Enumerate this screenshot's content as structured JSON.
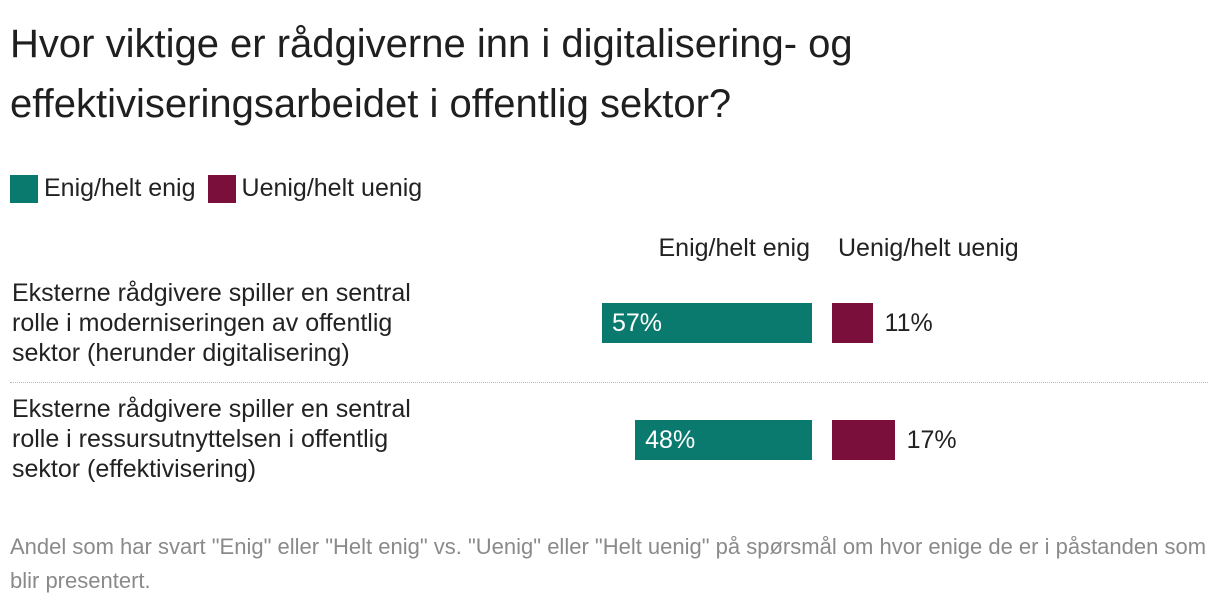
{
  "title": "Hvor viktige er rådgiverne inn i digitalisering- og effektiviseringsarbeidet i offentlig sektor?",
  "legend": [
    {
      "label": "Enig/helt enig",
      "color": "#0b7a6e"
    },
    {
      "label": "Uenig/helt uenig",
      "color": "#7b0f3c"
    }
  ],
  "columns": {
    "agree": "Enig/helt enig",
    "disagree": "Uenig/helt uenig"
  },
  "footnote": "Andel som har svart \"Enig\" eller \"Helt enig\" vs. \"Uenig\" eller \"Helt uenig\" på spørsmål om hvor enige de er i påstanden som blir presentert.",
  "chart_data": {
    "type": "bar",
    "orientation": "horizontal",
    "categories": [
      "Eksterne rådgivere spiller en sentral rolle i moderniseringen av offentlig sektor (herunder digitalisering)",
      "Eksterne rådgivere spiller en sentral rolle i ressursutnyttelsen i offentlig sektor (effektivisering)"
    ],
    "series": [
      {
        "name": "Enig/helt enig",
        "values": [
          57,
          48
        ],
        "labels": [
          "57%",
          "48%"
        ],
        "color": "#0b7a6e"
      },
      {
        "name": "Uenig/helt uenig",
        "values": [
          11,
          17
        ],
        "labels": [
          "11%",
          "17%"
        ],
        "color": "#7b0f3c"
      }
    ],
    "unit": "%",
    "xlim": [
      0,
      100
    ],
    "legend_position": "top-left",
    "grid": false
  }
}
